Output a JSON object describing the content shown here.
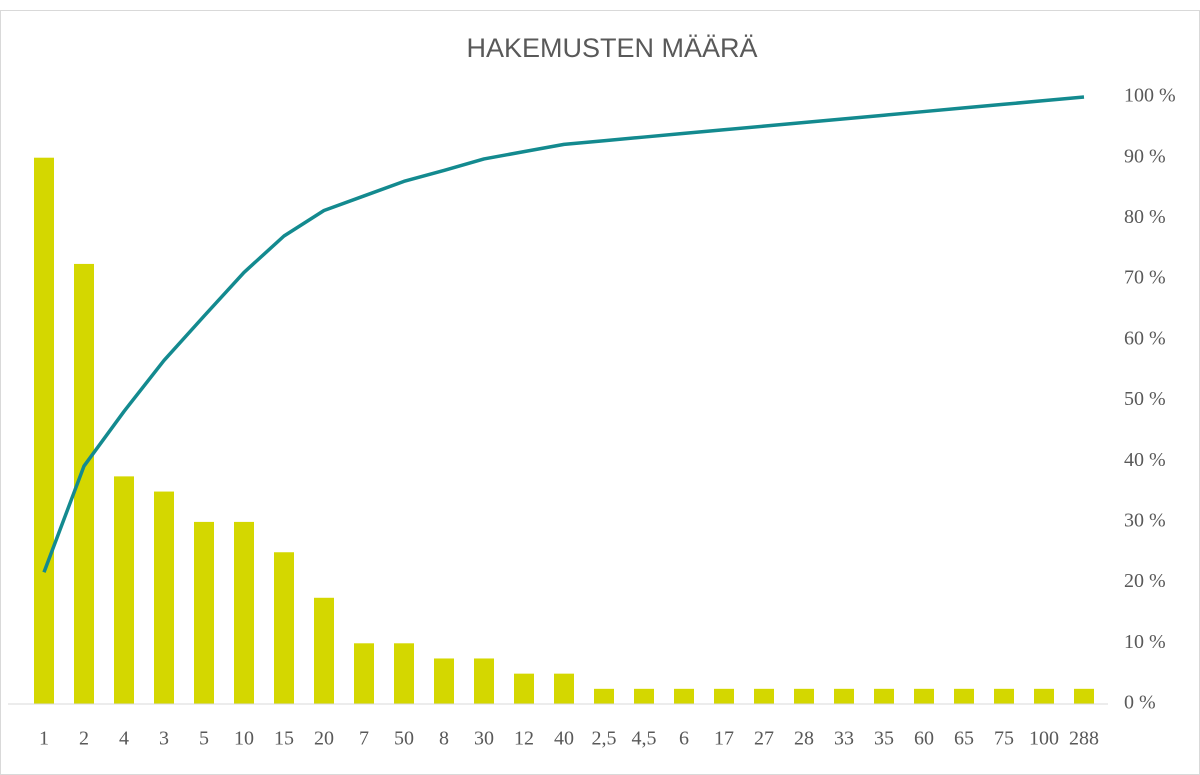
{
  "chart_data": {
    "type": "combo",
    "title": "HAKEMUSTEN MÄÄRÄ",
    "categories": [
      "1",
      "2",
      "4",
      "3",
      "5",
      "10",
      "15",
      "20",
      "7",
      "50",
      "8",
      "30",
      "12",
      "40",
      "2,5",
      "4,5",
      "6",
      "17",
      "27",
      "28",
      "33",
      "35",
      "60",
      "65",
      "75",
      "100",
      "288"
    ],
    "series": [
      {
        "type": "bar",
        "color": "#d4d700",
        "values": [
          36,
          29,
          15,
          14,
          12,
          12,
          10,
          7,
          4,
          4,
          3,
          3,
          2,
          2,
          1,
          1,
          1,
          1,
          1,
          1,
          1,
          1,
          1,
          1,
          1,
          1,
          1
        ]
      },
      {
        "type": "line",
        "axis": "y2",
        "color": "#138a8f",
        "values": [
          21.7,
          39.2,
          48.2,
          56.6,
          63.9,
          71.1,
          77.1,
          81.3,
          83.7,
          86.1,
          87.9,
          89.8,
          91.0,
          92.2,
          92.8,
          93.4,
          94.0,
          94.6,
          95.2,
          95.8,
          96.4,
          97.0,
          97.6,
          98.2,
          98.8,
          99.4,
          100
        ]
      }
    ],
    "ylim": [
      0,
      40
    ],
    "y2lim": [
      0,
      100
    ],
    "y2ticks": [
      {
        "value": 0,
        "label": "0 %"
      },
      {
        "value": 10,
        "label": "10 %"
      },
      {
        "value": 20,
        "label": "20 %"
      },
      {
        "value": 30,
        "label": "30 %"
      },
      {
        "value": 40,
        "label": "40 %"
      },
      {
        "value": 50,
        "label": "50 %"
      },
      {
        "value": 60,
        "label": "60 %"
      },
      {
        "value": 70,
        "label": "70 %"
      },
      {
        "value": 80,
        "label": "80 %"
      },
      {
        "value": 90,
        "label": "90 %"
      },
      {
        "value": 100,
        "label": "100 %"
      }
    ],
    "grid": false
  }
}
